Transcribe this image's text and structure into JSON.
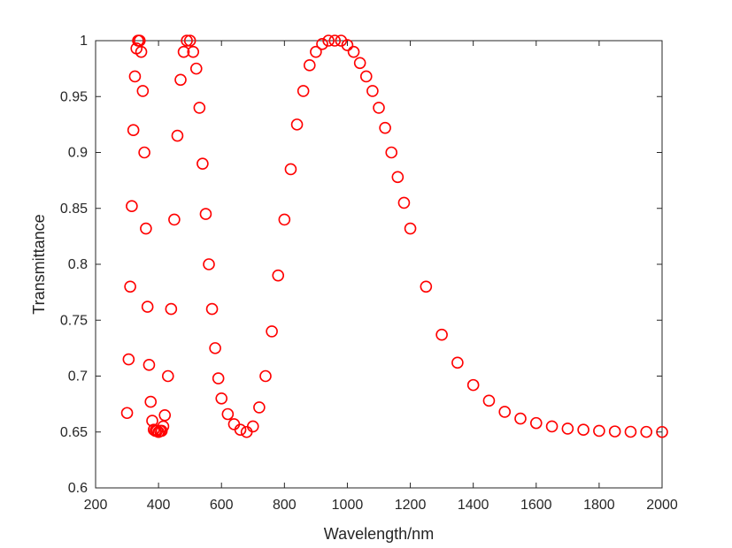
{
  "chart_data": {
    "type": "scatter",
    "marker": "open-circle",
    "marker_color": "#ff0000",
    "xlabel": "Wavelength/nm",
    "ylabel": "Transmittance",
    "xlim": [
      200,
      2000
    ],
    "ylim": [
      0.6,
      1.0
    ],
    "xticks": [
      200,
      400,
      600,
      800,
      1000,
      1200,
      1400,
      1600,
      1800,
      2000
    ],
    "yticks": [
      0.6,
      0.65,
      0.7,
      0.75,
      0.8,
      0.85,
      0.9,
      0.95,
      1.0
    ],
    "xtick_labels": [
      "200",
      "400",
      "600",
      "800",
      "1000",
      "1200",
      "1400",
      "1600",
      "1800",
      "2000"
    ],
    "ytick_labels": [
      "0.6",
      "0.65",
      "0.7",
      "0.75",
      "0.8",
      "0.85",
      "0.9",
      "0.95",
      "1"
    ],
    "grid": false,
    "legend": "none",
    "series": [
      {
        "x": [
          300,
          305,
          310,
          315,
          320,
          325,
          330,
          335,
          340,
          345,
          350,
          355,
          360,
          365,
          370,
          375,
          380,
          385,
          390,
          395,
          400,
          405,
          410,
          415,
          420,
          430,
          440,
          450,
          460,
          470,
          480,
          490,
          500,
          510,
          520,
          530,
          540,
          550,
          560,
          570,
          580,
          590,
          600,
          620,
          640,
          660,
          680,
          700,
          720,
          740,
          760,
          780,
          800,
          820,
          840,
          860,
          880,
          900,
          920,
          940,
          960,
          980,
          1000,
          1020,
          1040,
          1060,
          1080,
          1100,
          1120,
          1140,
          1160,
          1180,
          1200,
          1250,
          1300,
          1350,
          1400,
          1450,
          1500,
          1550,
          1600,
          1650,
          1700,
          1750,
          1800,
          1850,
          1900,
          1950,
          2000
        ],
        "y": [
          0.667,
          0.715,
          0.78,
          0.852,
          0.92,
          0.968,
          0.993,
          1.0,
          1.0,
          0.99,
          0.955,
          0.9,
          0.832,
          0.762,
          0.71,
          0.677,
          0.66,
          0.652,
          0.651,
          0.651,
          0.65,
          0.651,
          0.651,
          0.655,
          0.665,
          0.7,
          0.76,
          0.84,
          0.915,
          0.965,
          0.99,
          1.0,
          1.0,
          0.99,
          0.975,
          0.94,
          0.89,
          0.845,
          0.8,
          0.76,
          0.725,
          0.698,
          0.68,
          0.666,
          0.657,
          0.652,
          0.65,
          0.655,
          0.672,
          0.7,
          0.74,
          0.79,
          0.84,
          0.885,
          0.925,
          0.955,
          0.978,
          0.99,
          0.997,
          1.0,
          1.0,
          1.0,
          0.996,
          0.99,
          0.98,
          0.968,
          0.955,
          0.94,
          0.922,
          0.9,
          0.878,
          0.855,
          0.832,
          0.78,
          0.737,
          0.712,
          0.692,
          0.678,
          0.668,
          0.662,
          0.658,
          0.655,
          0.653,
          0.652,
          0.651,
          0.6505,
          0.6502,
          0.6501,
          0.65
        ]
      }
    ]
  }
}
